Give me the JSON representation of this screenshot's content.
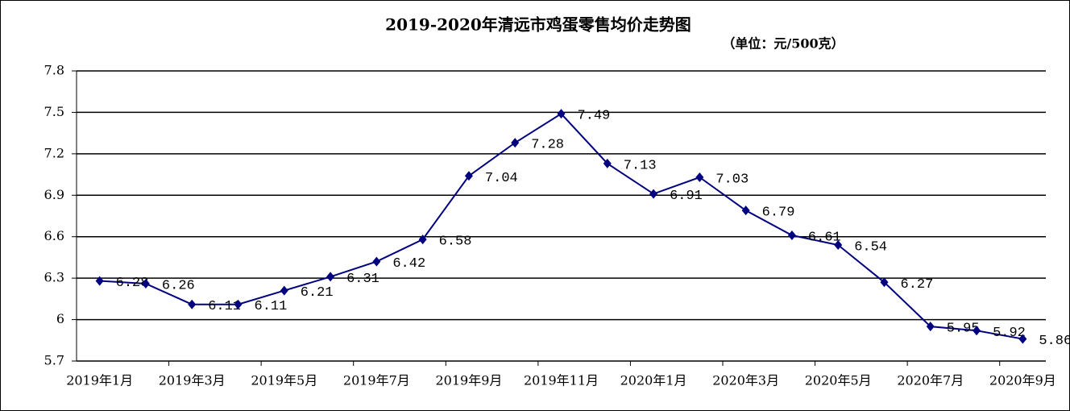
{
  "chart_data": {
    "type": "line",
    "title": "2019-2020年清远市鸡蛋零售均价走势图",
    "subtitle": "（单位：元/500克）",
    "categories": [
      "2019年1月",
      null,
      "2019年3月",
      null,
      "2019年5月",
      null,
      "2019年7月",
      null,
      "2019年9月",
      null,
      "2019年11月",
      null,
      "2020年1月",
      null,
      "2020年3月",
      null,
      "2020年5月",
      null,
      "2020年7月",
      null,
      "2020年9月"
    ],
    "series": [
      {
        "color": "#000080",
        "values": [
          6.28,
          6.26,
          6.11,
          6.11,
          6.21,
          6.31,
          6.42,
          6.58,
          7.04,
          7.28,
          7.49,
          7.13,
          6.91,
          7.03,
          6.79,
          6.61,
          6.54,
          6.27,
          5.95,
          5.92,
          5.86
        ]
      }
    ],
    "ylim": [
      5.7,
      7.8
    ],
    "yticks": [
      5.7,
      6,
      6.3,
      6.6,
      6.9,
      7.2,
      7.5,
      7.8
    ],
    "grid": true
  }
}
